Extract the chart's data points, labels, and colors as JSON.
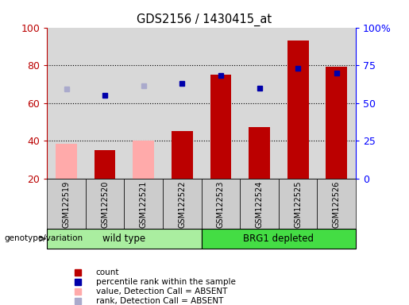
{
  "title": "GDS2156 / 1430415_at",
  "samples": [
    "GSM122519",
    "GSM122520",
    "GSM122521",
    "GSM122522",
    "GSM122523",
    "GSM122524",
    "GSM122525",
    "GSM122526"
  ],
  "count_values": [
    null,
    35,
    null,
    45,
    75,
    47,
    93,
    79
  ],
  "count_absent": [
    38.5,
    null,
    40,
    null,
    null,
    null,
    null,
    null
  ],
  "percentile_rank": [
    null,
    55,
    null,
    63,
    68,
    60,
    73,
    70
  ],
  "rank_absent": [
    59.5,
    null,
    61.5,
    null,
    null,
    null,
    null,
    null
  ],
  "ylim_left": [
    20,
    100
  ],
  "ylim_right": [
    0,
    100
  ],
  "yticks_left": [
    20,
    40,
    60,
    80,
    100
  ],
  "yticks_right": [
    0,
    25,
    50,
    75,
    100
  ],
  "ytick_labels_right": [
    "0",
    "25",
    "50",
    "75",
    "100%"
  ],
  "group1_label": "wild type",
  "group2_label": "BRG1 depleted",
  "group1_indices": [
    0,
    1,
    2,
    3
  ],
  "group2_indices": [
    4,
    5,
    6,
    7
  ],
  "bar_color_red": "#bb0000",
  "bar_color_pink": "#ffaaaa",
  "dot_color_blue": "#0000aa",
  "dot_color_lightblue": "#aaaacc",
  "group1_bg": "#aaeea0",
  "group2_bg": "#44dd44",
  "legend_items": [
    "count",
    "percentile rank within the sample",
    "value, Detection Call = ABSENT",
    "rank, Detection Call = ABSENT"
  ],
  "baseline": 20,
  "bar_width": 0.55
}
